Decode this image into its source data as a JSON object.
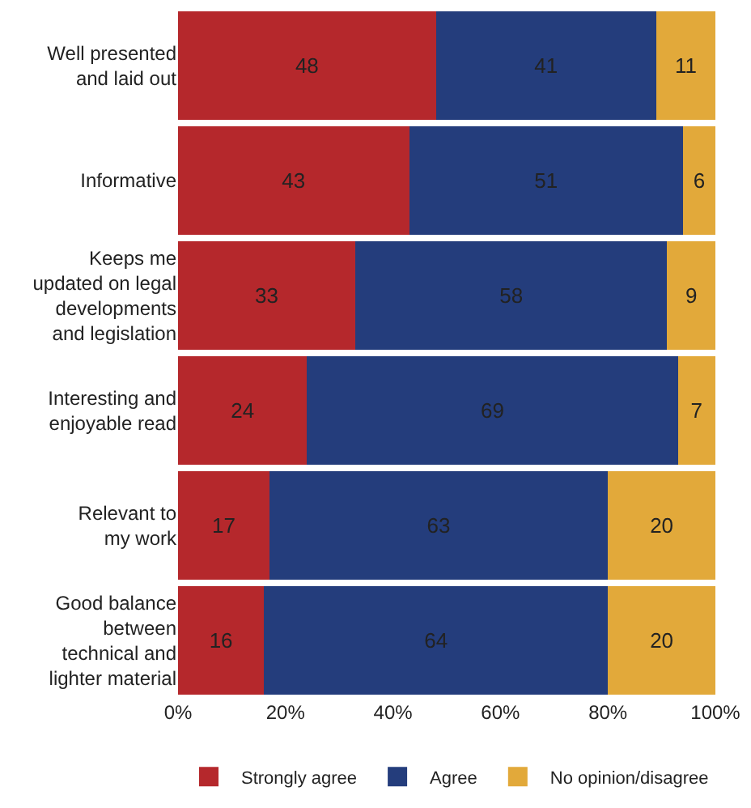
{
  "chart_data": {
    "type": "bar",
    "orientation": "horizontal",
    "stacked": true,
    "data_labels": true,
    "legend": "bottom",
    "categories": [
      "Well presented\nand laid out",
      "Informative",
      "Keeps me\nupdated on legal\ndevelopments\nand legislation",
      "Interesting and\nenjoyable read",
      "Relevant to\nmy work",
      "Good balance\nbetween\ntechnical and\nlighter material"
    ],
    "series": [
      {
        "name": "Strongly agree",
        "color": "#b5282c",
        "values": [
          48,
          43,
          33,
          24,
          17,
          16
        ]
      },
      {
        "name": "Agree",
        "color": "#243d7c",
        "values": [
          41,
          51,
          58,
          69,
          63,
          64
        ]
      },
      {
        "name": "No opinion/disagree",
        "color": "#e2a93a",
        "values": [
          11,
          6,
          9,
          7,
          20,
          20
        ]
      }
    ],
    "xlim": [
      0,
      100
    ],
    "xticks": [
      {
        "value": 0,
        "label": "0%"
      },
      {
        "value": 20,
        "label": "20%"
      },
      {
        "value": 40,
        "label": "40%"
      },
      {
        "value": 60,
        "label": "60%"
      },
      {
        "value": 80,
        "label": "80%"
      },
      {
        "value": 100,
        "label": "100%"
      }
    ]
  }
}
